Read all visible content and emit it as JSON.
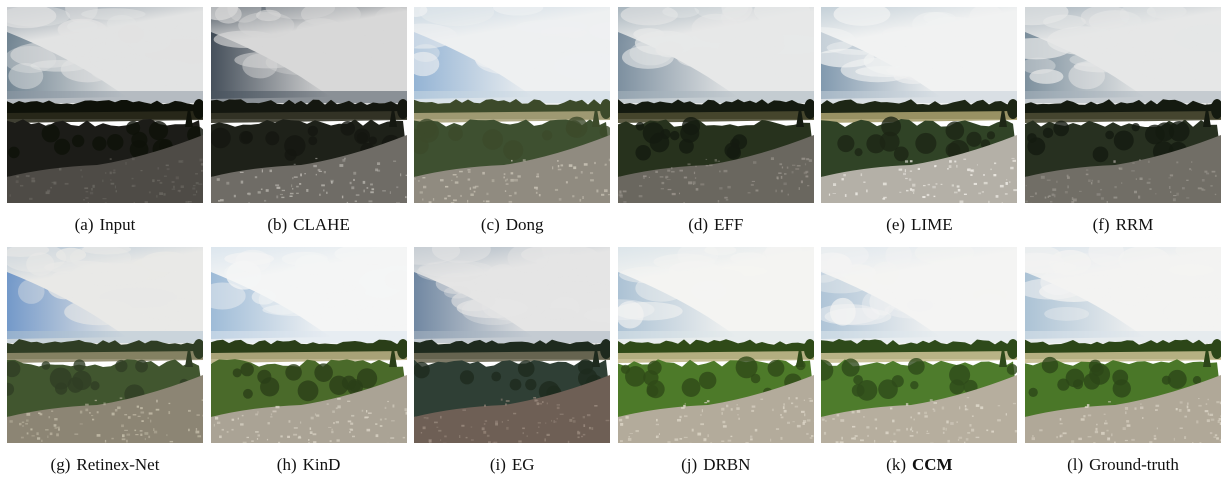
{
  "figure": {
    "panels": [
      {
        "tag": "(a)",
        "method": "Input",
        "bold": false,
        "sky_top": "#e2e3e3",
        "sky_mid": "#8f9ba6",
        "sky_blue": "#5f7585",
        "trees": "#0e1109",
        "field": "#2a2a1c",
        "ground": "#1c1c18",
        "rock": "#4e4b46",
        "rock_hi": "#6c6963"
      },
      {
        "tag": "(b)",
        "method": "CLAHE",
        "bold": false,
        "sky_top": "#d8d8d8",
        "sky_mid": "#4a5560",
        "sky_blue": "#2c3845",
        "trees": "#141710",
        "field": "#353528",
        "ground": "#1e2119",
        "rock": "#6f6c66",
        "rock_hi": "#b8b5ae"
      },
      {
        "tag": "(c)",
        "method": "Dong",
        "bold": false,
        "sky_top": "#eef0f1",
        "sky_mid": "#c9d7e2",
        "sky_blue": "#84a9cf",
        "trees": "#3c4a2a",
        "field": "#a8a27a",
        "ground": "#3e5030",
        "rock": "#908b80",
        "rock_hi": "#c9c3b5"
      },
      {
        "tag": "(d)",
        "method": "EFF",
        "bold": false,
        "sky_top": "#e7e8e8",
        "sky_mid": "#a7b4bd",
        "sky_blue": "#6a8093",
        "trees": "#141a10",
        "field": "#4a4a30",
        "ground": "#27321d",
        "rock": "#6a675f",
        "rock_hi": "#97928a"
      },
      {
        "tag": "(e)",
        "method": "LIME",
        "bold": false,
        "sky_top": "#f1f2f2",
        "sky_mid": "#c4d0d8",
        "sky_blue": "#6e8aa3",
        "trees": "#1d2615",
        "field": "#a69d6c",
        "ground": "#304326",
        "rock": "#b4b0a7",
        "rock_hi": "#efece6"
      },
      {
        "tag": "(f)",
        "method": "RRM",
        "bold": false,
        "sky_top": "#e6e7e7",
        "sky_mid": "#a9b5be",
        "sky_blue": "#6b8191",
        "trees": "#141a10",
        "field": "#4a4a33",
        "ground": "#273020",
        "rock": "#716e66",
        "rock_hi": "#98948c"
      },
      {
        "tag": "(g)",
        "method": "Retinex-Net",
        "bold": false,
        "sky_top": "#e9e9e7",
        "sky_mid": "#b0c2d2",
        "sky_blue": "#5f8bc4",
        "trees": "#2f3d24",
        "field": "#8e8869",
        "ground": "#41562f",
        "rock": "#8c8574",
        "rock_hi": "#c4bda9"
      },
      {
        "tag": "(h)",
        "method": "KinD",
        "bold": false,
        "sky_top": "#f4f5f5",
        "sky_mid": "#dce6ee",
        "sky_blue": "#8fb1d2",
        "trees": "#2a3e18",
        "field": "#b6ad82",
        "ground": "#4a6a2a",
        "rock": "#aaa395",
        "rock_hi": "#d8d2c4"
      },
      {
        "tag": "(i)",
        "method": "EG",
        "bold": false,
        "sky_top": "#e5e5e5",
        "sky_mid": "#a9b6c2",
        "sky_blue": "#5c7796",
        "trees": "#1e2a1e",
        "field": "#6e6a55",
        "ground": "#2f3f35",
        "rock": "#6e5f55",
        "rock_hi": "#9a8a7e"
      },
      {
        "tag": "(j)",
        "method": "DRBN",
        "bold": false,
        "sky_top": "#f4f4f2",
        "sky_mid": "#dce5ea",
        "sky_blue": "#9fb9cf",
        "trees": "#2f4a18",
        "field": "#c2b98c",
        "ground": "#4d7a29",
        "rock": "#b3ab9b",
        "rock_hi": "#dbd4c5"
      },
      {
        "tag": "(k)",
        "method": "CCM",
        "bold": true,
        "sky_top": "#f4f4f3",
        "sky_mid": "#dfe7ed",
        "sky_blue": "#a3bcd2",
        "trees": "#2e4a1a",
        "field": "#c8bf92",
        "ground": "#4e7c2c",
        "rock": "#b6ae9e",
        "rock_hi": "#ddd7c9"
      },
      {
        "tag": "(l)",
        "method": "Ground-truth",
        "bold": false,
        "sky_top": "#f3f3f2",
        "sky_mid": "#dbe4eb",
        "sky_blue": "#9fbad0",
        "trees": "#2c4618",
        "field": "#c4bb8e",
        "ground": "#4a7728",
        "rock": "#b0a898",
        "rock_hi": "#dad3c5"
      }
    ]
  }
}
